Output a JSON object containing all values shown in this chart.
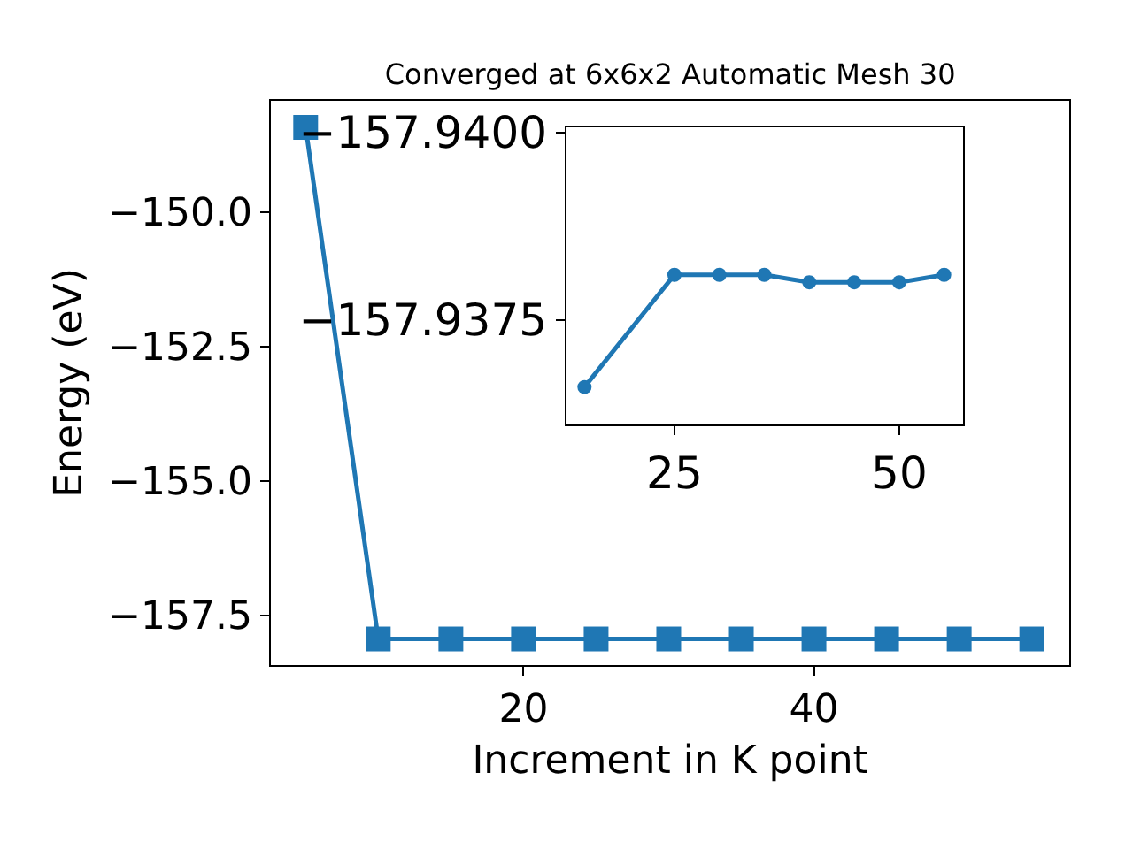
{
  "chart_data": [
    {
      "type": "line",
      "title": "Converged at 6x6x2 Automatic Mesh 30",
      "xlabel": "Increment in K point",
      "ylabel": "Energy (eV)",
      "x": [
        5,
        10,
        15,
        20,
        25,
        30,
        35,
        40,
        45,
        50,
        55
      ],
      "series": [
        {
          "color": "#1f77b4",
          "values": [
            -148.42,
            -157.94,
            -157.94,
            -157.94,
            -157.94,
            -157.94,
            -157.94,
            -157.94,
            -157.94,
            -157.94,
            -157.94
          ]
        }
      ],
      "xlim": [
        2.6,
        57.6
      ],
      "xticks": [
        20,
        40
      ],
      "ylim": [
        -158.42,
        -147.93
      ],
      "yticks": [
        {
          "value": -150,
          "label": "−150.0"
        },
        {
          "value": -152.5,
          "label": "−152.5"
        },
        {
          "value": -155,
          "label": "−155.0"
        },
        {
          "value": -157.5,
          "label": "−157.5"
        }
      ],
      "marker": "square",
      "line_style": "solid",
      "grid": false,
      "legend": false
    },
    {
      "type": "line",
      "x": [
        15,
        25,
        30,
        35,
        40,
        45,
        50,
        55
      ],
      "series": [
        {
          "color": "#1f77b4",
          "values": [
            -157.9366,
            -157.9381,
            -157.9381,
            -157.9381,
            -157.938,
            -157.938,
            -157.938,
            -157.9381
          ]
        }
      ],
      "xlim": [
        13,
        57.1
      ],
      "xticks": [
        25,
        50
      ],
      "ylim": [
        -157.9361,
        -157.94007
      ],
      "yticks": [
        {
          "value": -157.94,
          "label": "−157.9400"
        },
        {
          "value": -157.9375,
          "label": "−157.9375"
        }
      ],
      "marker": "circle",
      "line_style": "solid",
      "grid": false,
      "legend": false
    }
  ]
}
